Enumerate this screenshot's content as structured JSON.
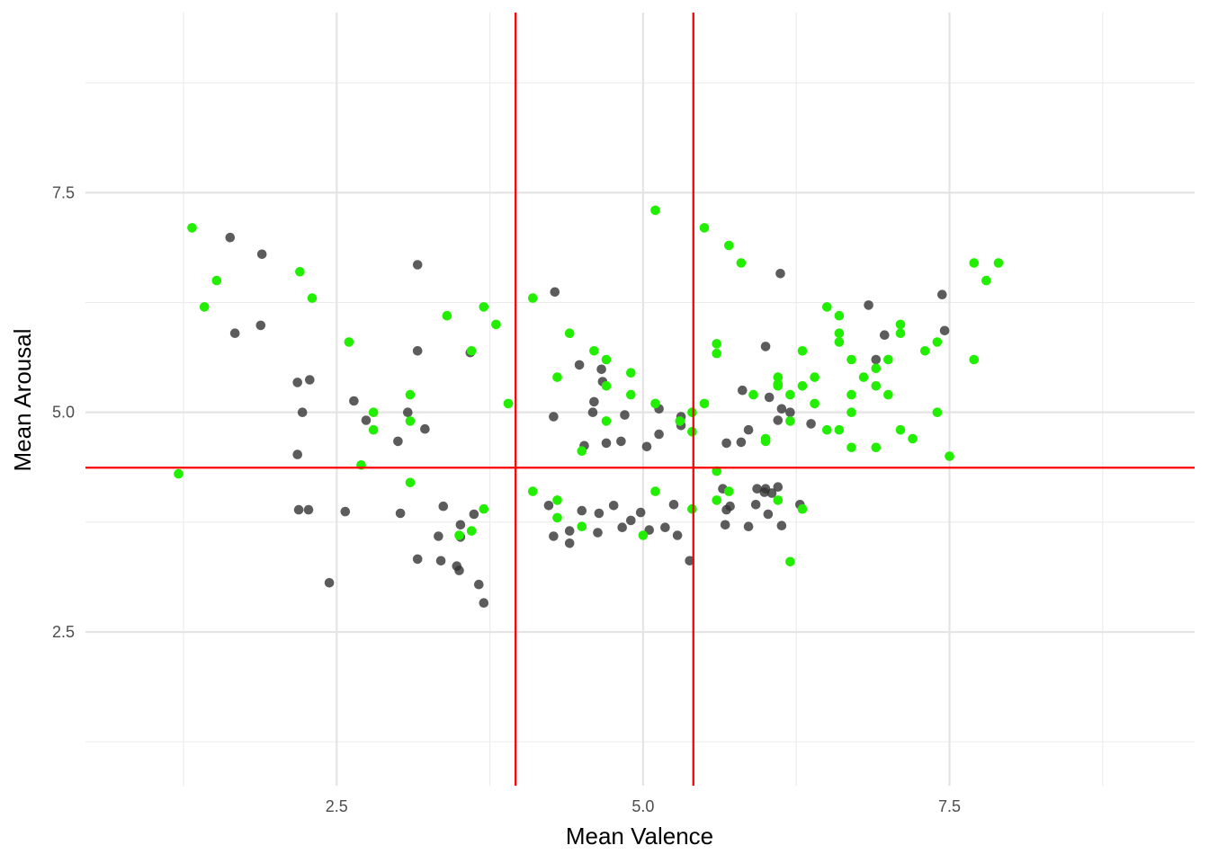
{
  "chart_data": {
    "type": "scatter",
    "title": "",
    "xlabel": "Mean Valence",
    "ylabel": "Mean Arousal",
    "xlim": [
      0.45,
      9.5
    ],
    "ylim": [
      0.75,
      9.55
    ],
    "x_ticks": [
      2.5,
      5.0,
      7.5
    ],
    "x_tick_labels": [
      "2.5",
      "5.0",
      "7.5"
    ],
    "y_ticks": [
      2.5,
      5.0,
      7.5
    ],
    "y_tick_labels": [
      "2.5",
      "5.0",
      "7.5"
    ],
    "grid": true,
    "reference_lines": {
      "color": "#ff0000",
      "vertical_x": [
        3.96,
        5.41
      ],
      "horizontal_y": 4.37
    },
    "series": [
      {
        "color": "#333333",
        "points": [
          [
            1.63,
            6.99
          ],
          [
            1.89,
            6.8
          ],
          [
            1.67,
            5.9
          ],
          [
            1.88,
            5.99
          ],
          [
            2.18,
            5.34
          ],
          [
            2.28,
            5.37
          ],
          [
            2.22,
            5.0
          ],
          [
            2.18,
            4.52
          ],
          [
            2.19,
            3.89
          ],
          [
            2.27,
            3.89
          ],
          [
            2.44,
            3.06
          ],
          [
            2.57,
            3.87
          ],
          [
            2.64,
            5.13
          ],
          [
            2.74,
            4.91
          ],
          [
            3.16,
            6.68
          ],
          [
            3.16,
            5.7
          ],
          [
            3.08,
            5.0
          ],
          [
            3.0,
            4.67
          ],
          [
            3.22,
            4.81
          ],
          [
            3.02,
            3.85
          ],
          [
            3.16,
            3.33
          ],
          [
            3.37,
            3.93
          ],
          [
            3.33,
            3.59
          ],
          [
            3.35,
            3.31
          ],
          [
            3.51,
            3.72
          ],
          [
            3.48,
            3.25
          ],
          [
            3.5,
            3.2
          ],
          [
            3.51,
            3.58
          ],
          [
            3.62,
            3.84
          ],
          [
            3.59,
            5.68
          ],
          [
            3.66,
            3.04
          ],
          [
            3.7,
            2.83
          ],
          [
            4.28,
            6.37
          ],
          [
            4.27,
            4.95
          ],
          [
            4.23,
            3.94
          ],
          [
            4.27,
            3.59
          ],
          [
            4.4,
            3.65
          ],
          [
            4.4,
            3.51
          ],
          [
            4.52,
            4.62
          ],
          [
            4.5,
            3.88
          ],
          [
            4.48,
            5.54
          ],
          [
            4.6,
            5.12
          ],
          [
            4.59,
            5.0
          ],
          [
            4.66,
            5.49
          ],
          [
            4.67,
            5.35
          ],
          [
            4.7,
            4.65
          ],
          [
            4.64,
            3.85
          ],
          [
            4.63,
            3.63
          ],
          [
            4.76,
            3.94
          ],
          [
            4.82,
            4.67
          ],
          [
            4.85,
            4.97
          ],
          [
            4.83,
            3.69
          ],
          [
            4.9,
            3.77
          ],
          [
            4.98,
            3.86
          ],
          [
            5.03,
            4.61
          ],
          [
            5.05,
            3.66
          ],
          [
            5.13,
            5.04
          ],
          [
            5.13,
            4.75
          ],
          [
            5.18,
            3.69
          ],
          [
            5.25,
            3.95
          ],
          [
            5.28,
            3.6
          ],
          [
            5.31,
            4.85
          ],
          [
            5.31,
            4.95
          ],
          [
            5.38,
            3.31
          ],
          [
            5.68,
            4.65
          ],
          [
            5.65,
            4.13
          ],
          [
            5.68,
            3.89
          ],
          [
            5.71,
            3.93
          ],
          [
            5.67,
            3.72
          ],
          [
            5.81,
            5.25
          ],
          [
            5.8,
            4.66
          ],
          [
            5.86,
            4.8
          ],
          [
            5.86,
            3.7
          ],
          [
            5.93,
            4.13
          ],
          [
            5.92,
            3.95
          ],
          [
            6.0,
            5.75
          ],
          [
            6.03,
            5.17
          ],
          [
            6.0,
            4.13
          ],
          [
            5.99,
            4.09
          ],
          [
            6.02,
            3.84
          ],
          [
            6.05,
            4.08
          ],
          [
            6.12,
            6.58
          ],
          [
            6.13,
            5.04
          ],
          [
            6.1,
            4.91
          ],
          [
            6.1,
            4.15
          ],
          [
            6.13,
            3.71
          ],
          [
            6.2,
            5.0
          ],
          [
            6.28,
            3.95
          ],
          [
            6.37,
            4.87
          ],
          [
            6.84,
            6.22
          ],
          [
            6.9,
            5.6
          ],
          [
            6.97,
            5.88
          ],
          [
            7.44,
            6.34
          ],
          [
            7.46,
            5.93
          ]
        ]
      },
      {
        "color": "#22ee00",
        "points": [
          [
            1.21,
            4.3
          ],
          [
            1.32,
            7.1
          ],
          [
            1.42,
            6.2
          ],
          [
            1.52,
            6.5
          ],
          [
            2.2,
            6.6
          ],
          [
            2.3,
            6.3
          ],
          [
            2.6,
            5.8
          ],
          [
            2.7,
            4.4
          ],
          [
            2.8,
            5.0
          ],
          [
            2.8,
            4.8
          ],
          [
            3.1,
            5.2
          ],
          [
            3.1,
            4.9
          ],
          [
            3.1,
            4.2
          ],
          [
            3.4,
            6.1
          ],
          [
            3.5,
            3.6
          ],
          [
            3.6,
            5.7
          ],
          [
            3.6,
            3.65
          ],
          [
            3.7,
            6.2
          ],
          [
            3.7,
            3.9
          ],
          [
            3.8,
            6.0
          ],
          [
            3.9,
            5.1
          ],
          [
            4.1,
            6.3
          ],
          [
            4.1,
            4.1
          ],
          [
            4.3,
            5.4
          ],
          [
            4.3,
            4.0
          ],
          [
            4.3,
            3.8
          ],
          [
            4.4,
            5.9
          ],
          [
            4.5,
            4.56
          ],
          [
            4.5,
            3.7
          ],
          [
            4.6,
            5.7
          ],
          [
            4.7,
            5.6
          ],
          [
            4.7,
            5.3
          ],
          [
            4.7,
            4.9
          ],
          [
            4.9,
            5.45
          ],
          [
            4.9,
            5.2
          ],
          [
            5.0,
            3.6
          ],
          [
            5.1,
            7.3
          ],
          [
            5.1,
            5.1
          ],
          [
            5.1,
            4.1
          ],
          [
            5.3,
            4.9
          ],
          [
            5.4,
            5.0
          ],
          [
            5.4,
            4.78
          ],
          [
            5.4,
            3.9
          ],
          [
            5.5,
            7.1
          ],
          [
            5.5,
            5.1
          ],
          [
            5.6,
            5.78
          ],
          [
            5.6,
            5.67
          ],
          [
            5.6,
            4.33
          ],
          [
            5.6,
            4.0
          ],
          [
            5.7,
            6.9
          ],
          [
            5.7,
            4.1
          ],
          [
            5.8,
            6.7
          ],
          [
            5.9,
            5.2
          ],
          [
            6.0,
            4.7
          ],
          [
            6.0,
            4.67
          ],
          [
            6.1,
            5.4
          ],
          [
            6.1,
            5.3
          ],
          [
            6.1,
            5.32
          ],
          [
            6.1,
            4.0
          ],
          [
            6.2,
            5.2
          ],
          [
            6.2,
            4.9
          ],
          [
            6.2,
            3.3
          ],
          [
            6.3,
            5.7
          ],
          [
            6.3,
            5.3
          ],
          [
            6.3,
            3.9
          ],
          [
            6.4,
            5.4
          ],
          [
            6.4,
            5.1
          ],
          [
            6.5,
            6.2
          ],
          [
            6.5,
            4.8
          ],
          [
            6.6,
            6.1
          ],
          [
            6.6,
            5.9
          ],
          [
            6.6,
            5.8
          ],
          [
            6.6,
            4.8
          ],
          [
            6.7,
            5.6
          ],
          [
            6.7,
            5.2
          ],
          [
            6.7,
            5.0
          ],
          [
            6.7,
            4.6
          ],
          [
            6.8,
            5.4
          ],
          [
            6.9,
            5.5
          ],
          [
            6.9,
            5.3
          ],
          [
            6.9,
            4.6
          ],
          [
            7.0,
            5.6
          ],
          [
            7.0,
            5.2
          ],
          [
            7.1,
            6.0
          ],
          [
            7.1,
            5.9
          ],
          [
            7.1,
            4.8
          ],
          [
            7.2,
            4.7
          ],
          [
            7.3,
            5.7
          ],
          [
            7.4,
            5.8
          ],
          [
            7.4,
            5.0
          ],
          [
            7.5,
            4.5
          ],
          [
            7.7,
            6.7
          ],
          [
            7.7,
            5.6
          ],
          [
            7.8,
            6.5
          ],
          [
            7.9,
            6.7
          ]
        ]
      }
    ]
  }
}
